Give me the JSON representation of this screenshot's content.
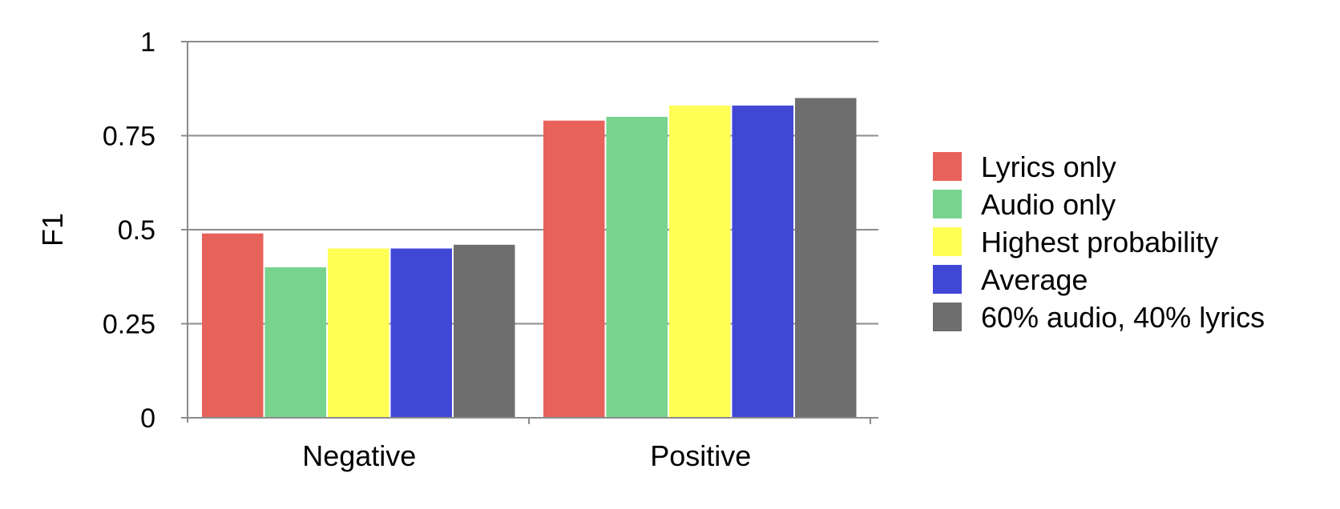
{
  "chart_data": {
    "type": "bar",
    "xlabel": "",
    "ylabel": "F1",
    "categories": [
      "Negative",
      "Positive"
    ],
    "ylim": [
      0,
      1
    ],
    "yticks": [
      0,
      0.25,
      0.5,
      0.75,
      1
    ],
    "ytick_labels": [
      "0",
      "0.25",
      "0.5",
      "0.75",
      "1"
    ],
    "grid": true,
    "legend_position": "right",
    "series": [
      {
        "name": "Lyrics only",
        "color": "#e8625c",
        "values": [
          0.49,
          0.79
        ]
      },
      {
        "name": "Audio only",
        "color": "#77d38e",
        "values": [
          0.4,
          0.8
        ]
      },
      {
        "name": "Highest probability",
        "color": "#ffff55",
        "values": [
          0.45,
          0.83
        ]
      },
      {
        "name": "Average",
        "color": "#4147d5",
        "values": [
          0.45,
          0.83
        ]
      },
      {
        "name": "60% audio, 40% lyrics",
        "color": "#6e6e6e",
        "values": [
          0.46,
          0.85
        ]
      }
    ]
  }
}
